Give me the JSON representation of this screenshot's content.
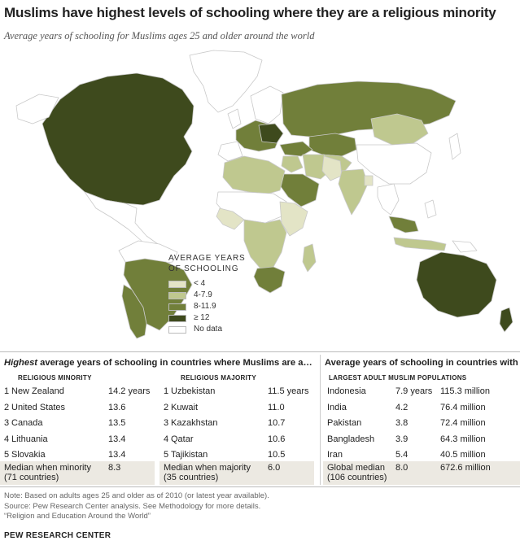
{
  "title": "Muslims have highest levels of schooling where they are a religious minority",
  "subtitle": "Average years of schooling for Muslims ages 25 and older around the world",
  "colors": {
    "lt4": "#e3e4c6",
    "c4_8": "#bfc88f",
    "c8_12": "#717f3a",
    "ge12": "#3e4a1d",
    "nodata": "#ffffff",
    "border": "#c9c9c9",
    "shade": "#ece9e2"
  },
  "legend": {
    "title_line1": "AVERAGE YEARS",
    "title_line2": "OF SCHOOLING",
    "items": [
      {
        "label": "< 4",
        "color": "#e3e4c6"
      },
      {
        "label": "4-7.9",
        "color": "#bfc88f"
      },
      {
        "label": "8-11.9",
        "color": "#717f3a"
      },
      {
        "label": "≥ 12",
        "color": "#3e4a1d"
      },
      {
        "label": "No data",
        "color": "#ffffff"
      }
    ]
  },
  "left_table": {
    "heading_bold": "Highest",
    "heading_rest": " average years of schooling in countries where Muslims are a…",
    "minority": {
      "header": "RELIGIOUS MINORITY",
      "rows": [
        {
          "rank": "1",
          "country": "New Zealand",
          "value": "14.2 years"
        },
        {
          "rank": "2",
          "country": "United States",
          "value": "13.6"
        },
        {
          "rank": "3",
          "country": "Canada",
          "value": "13.5"
        },
        {
          "rank": "4",
          "country": "Lithuania",
          "value": "13.4"
        },
        {
          "rank": "5",
          "country": "Slovakia",
          "value": "13.4"
        }
      ],
      "median_line1": "Median when minority",
      "median_line2": "(71 countries)",
      "median_value": "8.3"
    },
    "majority": {
      "header": "RELIGIOUS MAJORITY",
      "rows": [
        {
          "rank": "1",
          "country": "Uzbekistan",
          "value": "11.5 years"
        },
        {
          "rank": "2",
          "country": "Kuwait",
          "value": "11.0"
        },
        {
          "rank": "3",
          "country": "Kazakhstan",
          "value": "10.7"
        },
        {
          "rank": "4",
          "country": "Qatar",
          "value": "10.6"
        },
        {
          "rank": "5",
          "country": "Tajikistan",
          "value": "10.5"
        }
      ],
      "median_line1": "Median when majority",
      "median_line2": "(35 countries)",
      "median_value": "6.0"
    }
  },
  "right_table": {
    "heading": "Average years of schooling in countries with",
    "header": "LARGEST ADULT MUSLIM POPULATIONS",
    "rows": [
      {
        "country": "Indonesia",
        "years": "7.9 years",
        "population": "115.3 million"
      },
      {
        "country": "India",
        "years": "4.2",
        "population": "76.4 million"
      },
      {
        "country": "Pakistan",
        "years": "3.8",
        "population": "72.4 million"
      },
      {
        "country": "Bangladesh",
        "years": "3.9",
        "population": "64.3 million"
      },
      {
        "country": "Iran",
        "years": "5.4",
        "population": "40.5 million"
      }
    ],
    "median_line1": "Global median",
    "median_line2": "(106 countries)",
    "median_value": "8.0",
    "median_population": "672.6 million"
  },
  "note": {
    "line1": "Note: Based on adults ages 25 and older as of 2010 (or latest year available).",
    "line2": "Source: Pew Research Center analysis. See Methodology for more details.",
    "line3": "“Religion and Education Around the World”"
  },
  "brand": "PEW RESEARCH CENTER"
}
